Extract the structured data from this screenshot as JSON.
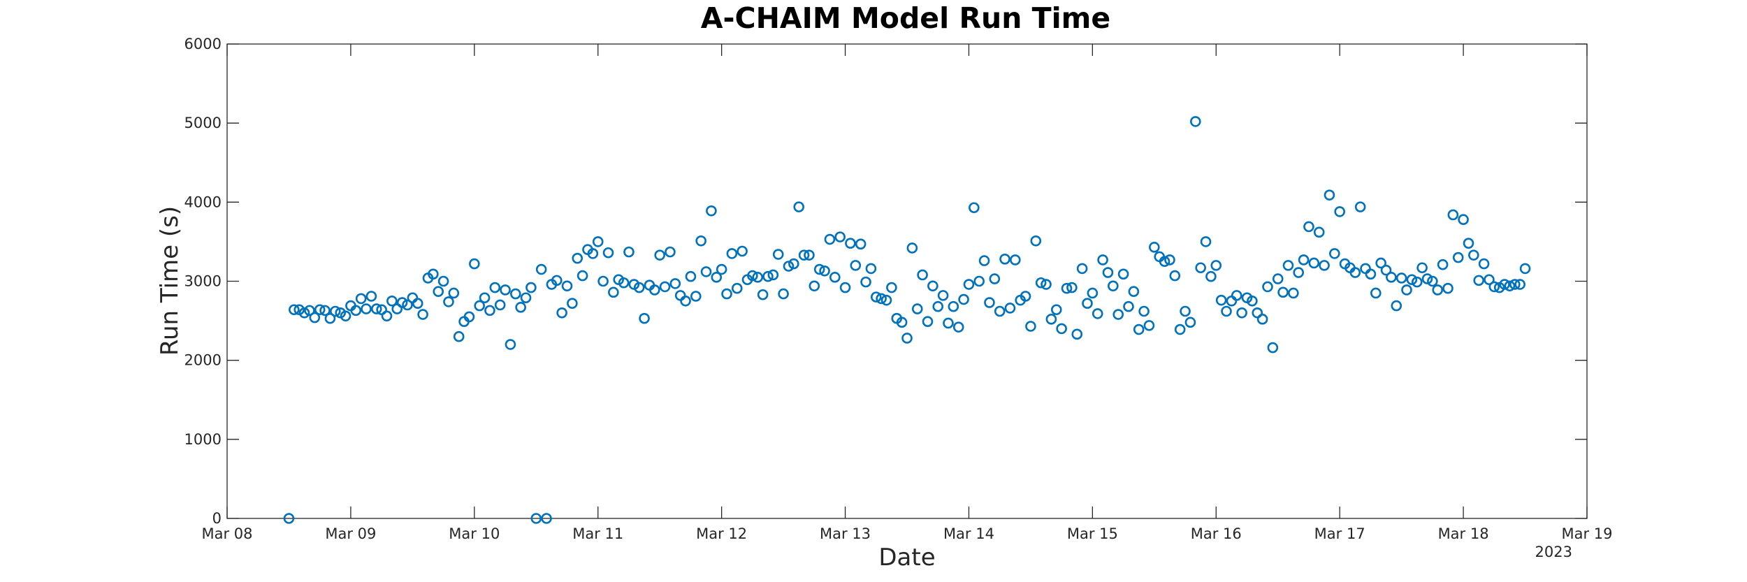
{
  "chart_data": {
    "type": "scatter",
    "title": "A-CHAIM Model Run Time",
    "xlabel": "Date",
    "ylabel": "Run Time (s)",
    "year_label": "2023",
    "x_ticks": [
      "Mar 08",
      "Mar 09",
      "Mar 10",
      "Mar 11",
      "Mar 12",
      "Mar 13",
      "Mar 14",
      "Mar 15",
      "Mar 16",
      "Mar 17",
      "Mar 18",
      "Mar 19"
    ],
    "xlim": [
      "2023-03-08",
      "2023-03-19"
    ],
    "y_ticks": [
      "0",
      "1000",
      "2000",
      "3000",
      "4000",
      "5000",
      "6000"
    ],
    "ylim": [
      0,
      6000
    ],
    "grid": false,
    "marker_color": "#0072BD",
    "x_step_hours": 1,
    "x_start": "2023-03-08T12:00",
    "values": [
      0,
      2640,
      2640,
      2600,
      2630,
      2540,
      2640,
      2630,
      2530,
      2620,
      2600,
      2560,
      2690,
      2630,
      2780,
      2650,
      2810,
      2650,
      2640,
      2560,
      2750,
      2650,
      2730,
      2700,
      2790,
      2720,
      2580,
      3040,
      3090,
      2870,
      3000,
      2740,
      2850,
      2300,
      2490,
      2550,
      3220,
      2690,
      2790,
      2630,
      2920,
      2700,
      2890,
      2200,
      2840,
      2670,
      2790,
      2920,
      0,
      3150,
      0,
      2960,
      3010,
      2600,
      2940,
      2720,
      3290,
      3070,
      3400,
      3350,
      3500,
      3000,
      3360,
      2860,
      3020,
      2980,
      3370,
      2960,
      2920,
      2530,
      2950,
      2890,
      3330,
      2930,
      3370,
      2970,
      2820,
      2750,
      3060,
      2810,
      3510,
      3120,
      3890,
      3050,
      3150,
      2840,
      3350,
      2910,
      3380,
      3020,
      3070,
      3050,
      2830,
      3060,
      3080,
      3340,
      2840,
      3190,
      3220,
      3940,
      3330,
      3330,
      2940,
      3150,
      3130,
      3530,
      3050,
      3560,
      2920,
      3480,
      3200,
      3470,
      2990,
      3160,
      2800,
      2780,
      2760,
      2920,
      2530,
      2480,
      2280,
      3420,
      2650,
      3080,
      2490,
      2940,
      2680,
      2820,
      2470,
      2680,
      2420,
      2770,
      2960,
      3930,
      3000,
      3260,
      2730,
      3030,
      2620,
      3280,
      2660,
      3270,
      2760,
      2810,
      2430,
      3510,
      2980,
      2960,
      2520,
      2640,
      2400,
      2910,
      2920,
      2330,
      3160,
      2720,
      2850,
      2590,
      3270,
      3110,
      2940,
      2580,
      3090,
      2680,
      2870,
      2390,
      2620,
      2440,
      3430,
      3310,
      3250,
      3270,
      3070,
      2390,
      2620,
      2480,
      5020,
      3170,
      3500,
      3060,
      3200,
      2760,
      2620,
      2750,
      2820,
      2600,
      2790,
      2750,
      2600,
      2520,
      2930,
      2160,
      3030,
      2860,
      3200,
      2850,
      3110,
      3270,
      3690,
      3230,
      3620,
      3200,
      4090,
      3350,
      3880,
      3220,
      3170,
      3110,
      3940,
      3160,
      3090,
      2850,
      3230,
      3140,
      3050,
      2690,
      3040,
      2890,
      3020,
      2990,
      3170,
      3030,
      3000,
      2890,
      3210,
      2910,
      3840,
      3300,
      3780,
      3480,
      3330,
      3010,
      3220,
      3020,
      2930,
      2920,
      2960,
      2940,
      2960,
      2960,
      3160
    ]
  }
}
